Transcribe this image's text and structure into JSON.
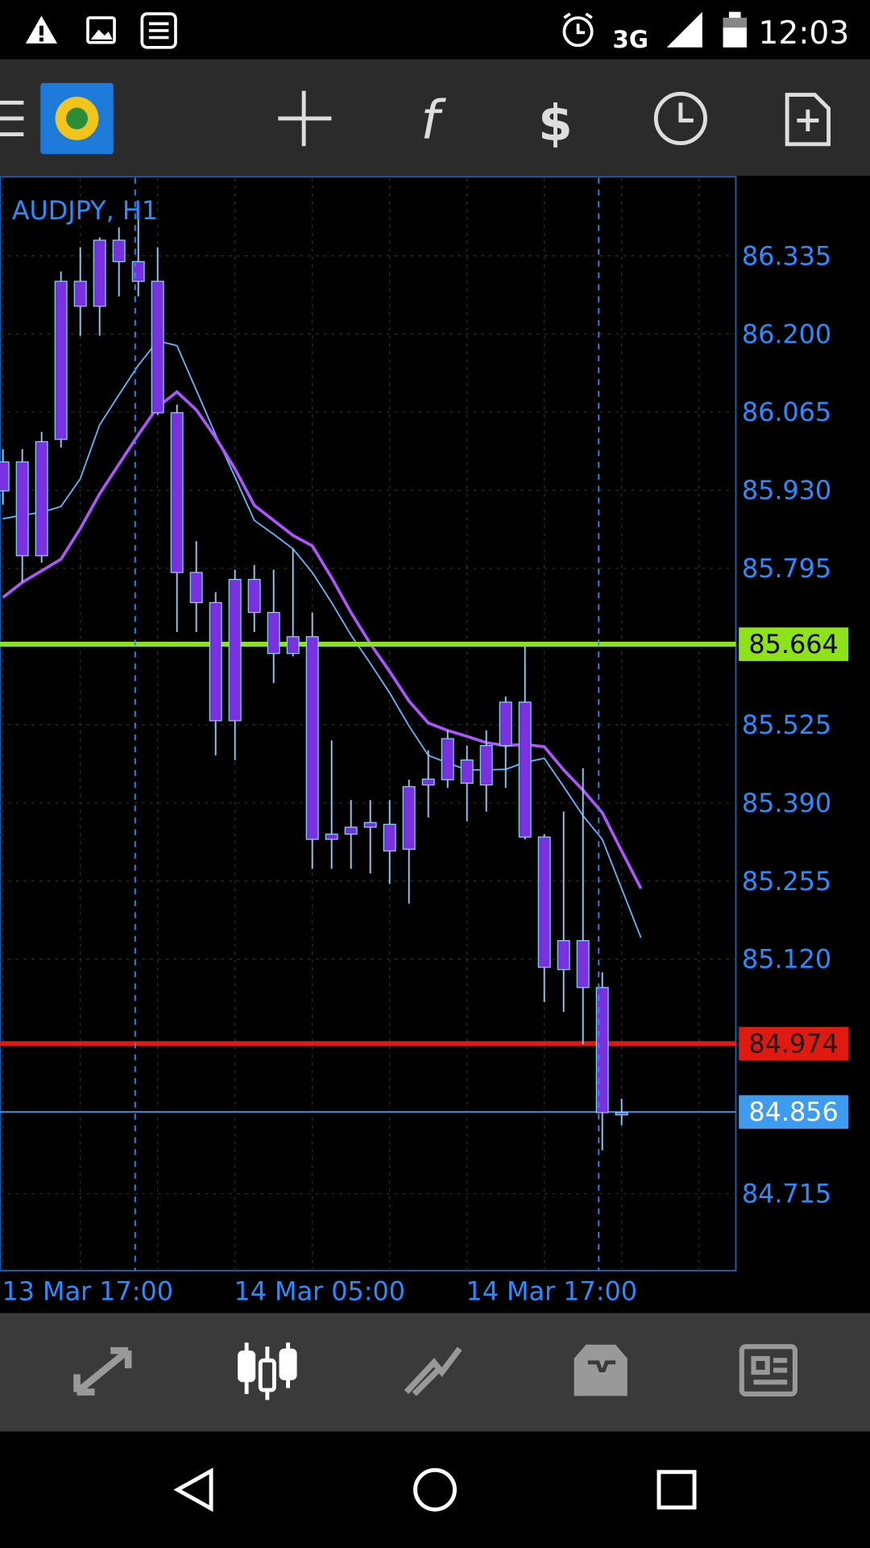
{
  "status_bar": {
    "network": "3G",
    "time": "12:03"
  },
  "chart_data": {
    "type": "candlestick",
    "title": "AUDJPY, H1",
    "categories": [
      "13 Mar 17:00",
      null,
      null,
      null,
      null,
      null,
      null,
      null,
      null,
      null,
      null,
      null,
      "14 Mar 05:00",
      null,
      null,
      null,
      null,
      null,
      null,
      null,
      null,
      null,
      null,
      null,
      "14 Mar 17:00",
      null,
      null,
      null,
      null,
      null,
      null,
      null,
      null,
      null
    ],
    "open": [
      85.929,
      85.979,
      85.817,
      86.018,
      86.291,
      86.248,
      86.362,
      86.325,
      86.291,
      86.064,
      85.788,
      85.736,
      85.532,
      85.776,
      85.719,
      85.648,
      85.677,
      85.327,
      85.336,
      85.348,
      85.353,
      85.31,
      85.421,
      85.43,
      85.464,
      85.421,
      85.489,
      85.564,
      85.331,
      85.102,
      85.152,
      85.071,
      84.851,
      null
    ],
    "high": [
      86.001,
      86.001,
      86.031,
      86.308,
      86.35,
      86.367,
      86.384,
      86.419,
      86.35,
      86.078,
      85.842,
      85.754,
      85.793,
      85.801,
      85.793,
      85.83,
      85.719,
      85.498,
      85.395,
      85.395,
      85.395,
      85.43,
      85.481,
      85.515,
      85.489,
      85.515,
      85.574,
      85.66,
      85.336,
      85.375,
      85.45,
      85.097,
      84.879,
      null
    ],
    "low": [
      85.905,
      85.771,
      85.805,
      86.004,
      86.197,
      86.197,
      86.265,
      86.265,
      86.06,
      85.685,
      85.685,
      85.472,
      85.464,
      85.685,
      85.597,
      85.643,
      85.276,
      85.276,
      85.276,
      85.268,
      85.25,
      85.216,
      85.365,
      85.416,
      85.358,
      85.375,
      85.416,
      85.327,
      85.046,
      85.029,
      84.973,
      84.79,
      84.833,
      null
    ],
    "close": [
      85.979,
      85.817,
      86.014,
      86.291,
      86.248,
      86.362,
      86.325,
      86.291,
      86.064,
      85.788,
      85.736,
      85.532,
      85.776,
      85.719,
      85.648,
      85.677,
      85.327,
      85.336,
      85.348,
      85.356,
      85.307,
      85.418,
      85.431,
      85.501,
      85.424,
      85.489,
      85.564,
      85.331,
      85.106,
      85.152,
      85.071,
      84.855,
      84.855,
      null
    ],
    "body_color": "#7a2fe0",
    "wick_color": "#8fd3ff",
    "series": [
      {
        "color": "#5cb8ff",
        "values": [
          85.881,
          85.887,
          85.892,
          85.902,
          85.95,
          86.043,
          86.095,
          86.146,
          86.188,
          86.18,
          86.103,
          86.026,
          85.953,
          85.878,
          85.854,
          85.829,
          85.788,
          85.736,
          85.68,
          85.631,
          85.58,
          85.523,
          85.472,
          85.459,
          85.447,
          85.447,
          85.448,
          85.46,
          85.467,
          85.418,
          85.368,
          85.327,
          85.242,
          85.157
        ]
      },
      {
        "color": "#b054ff",
        "values": [
          85.745,
          85.771,
          85.791,
          85.811,
          85.864,
          85.924,
          85.975,
          86.026,
          86.074,
          86.1,
          86.069,
          86.021,
          85.967,
          85.904,
          85.878,
          85.852,
          85.834,
          85.779,
          85.719,
          85.665,
          85.617,
          85.566,
          85.528,
          85.515,
          85.505,
          85.494,
          85.489,
          85.491,
          85.487,
          85.447,
          85.412,
          85.373,
          85.307,
          85.242
        ]
      }
    ],
    "levels": [
      {
        "value": 85.664,
        "color": "#8ee21a",
        "text_color": "#000000"
      },
      {
        "value": 84.974,
        "color": "#e01a10",
        "text_color": "#1a1a1a"
      },
      {
        "value": 84.856,
        "color": "#3d9bf0",
        "text_color": "#ffffff"
      }
    ],
    "ylim": [
      84.582,
      86.47
    ],
    "yticks": [
      86.335,
      {
        "value": 86.2,
        "label": "86.200"
      },
      86.065,
      {
        "value": 85.93,
        "label": "85.930"
      },
      85.795,
      85.525,
      {
        "value": 85.39,
        "label": "85.390"
      },
      85.255,
      {
        "value": 85.12,
        "label": "85.120"
      },
      84.715
    ],
    "grid": true
  }
}
